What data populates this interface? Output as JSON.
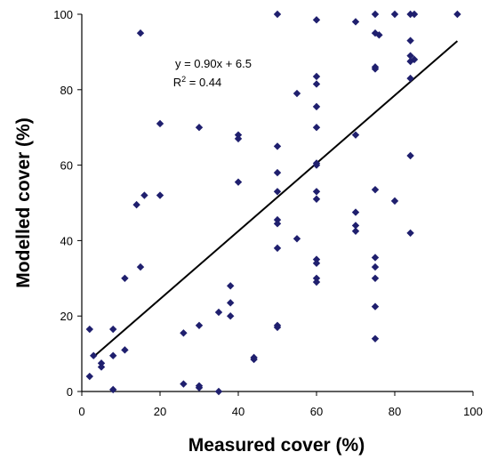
{
  "chart_data": {
    "type": "scatter",
    "title": "",
    "xlabel": "Measured cover (%)",
    "ylabel": "Modelled cover (%)",
    "xlim": [
      0,
      100
    ],
    "ylim": [
      0,
      100
    ],
    "xticks": [
      0,
      20,
      40,
      60,
      80,
      100
    ],
    "yticks": [
      0,
      20,
      40,
      60,
      80,
      100
    ],
    "grid": false,
    "marker": "diamond",
    "marker_color": "#1f1f6e",
    "annotations": {
      "equation": "y = 0.90x + 6.5",
      "r2_prefix": "R",
      "r2_sup": "2",
      "r2_suffix": " = 0.44"
    },
    "trendline": {
      "slope": 0.9,
      "intercept": 6.5,
      "x_range": [
        3,
        96
      ]
    },
    "points": [
      [
        50,
        100
      ],
      [
        60,
        98.5
      ],
      [
        70,
        98
      ],
      [
        75,
        100
      ],
      [
        80,
        100
      ],
      [
        84,
        100
      ],
      [
        85,
        100
      ],
      [
        96,
        100
      ],
      [
        15,
        95
      ],
      [
        75,
        95
      ],
      [
        76,
        94.5
      ],
      [
        84,
        93
      ],
      [
        84,
        89
      ],
      [
        85,
        88
      ],
      [
        84,
        87.5
      ],
      [
        75,
        86
      ],
      [
        75,
        85.5
      ],
      [
        60,
        83.5
      ],
      [
        84,
        83
      ],
      [
        60,
        81.5
      ],
      [
        55,
        79
      ],
      [
        60,
        75.5
      ],
      [
        20,
        71
      ],
      [
        30,
        70
      ],
      [
        60,
        70
      ],
      [
        40,
        68
      ],
      [
        70,
        68
      ],
      [
        40,
        67
      ],
      [
        50,
        65
      ],
      [
        84,
        62.5
      ],
      [
        60,
        60.5
      ],
      [
        60,
        60
      ],
      [
        50,
        58
      ],
      [
        40,
        55.5
      ],
      [
        75,
        53.5
      ],
      [
        50,
        53
      ],
      [
        60,
        53
      ],
      [
        16,
        52
      ],
      [
        20,
        52
      ],
      [
        60,
        51
      ],
      [
        80,
        50.5
      ],
      [
        14,
        49.5
      ],
      [
        70,
        47.5
      ],
      [
        50,
        45.5
      ],
      [
        50,
        44.5
      ],
      [
        70,
        44
      ],
      [
        70,
        42.5
      ],
      [
        84,
        42
      ],
      [
        55,
        40.5
      ],
      [
        50,
        38
      ],
      [
        75,
        35.5
      ],
      [
        60,
        35
      ],
      [
        60,
        34
      ],
      [
        15,
        33
      ],
      [
        75,
        33
      ],
      [
        11,
        30
      ],
      [
        60,
        30
      ],
      [
        75,
        30
      ],
      [
        60,
        29
      ],
      [
        38,
        28
      ],
      [
        38,
        23.5
      ],
      [
        75,
        22.5
      ],
      [
        35,
        21
      ],
      [
        38,
        20
      ],
      [
        50,
        17.5
      ],
      [
        50,
        17
      ],
      [
        30,
        17.5
      ],
      [
        2,
        16.5
      ],
      [
        8,
        16.5
      ],
      [
        26,
        15.5
      ],
      [
        75,
        14
      ],
      [
        11,
        11
      ],
      [
        3,
        9.5
      ],
      [
        8,
        9.5
      ],
      [
        44,
        9
      ],
      [
        44,
        8.5
      ],
      [
        5,
        7.5
      ],
      [
        5,
        6.5
      ],
      [
        2,
        4
      ],
      [
        26,
        2
      ],
      [
        30,
        1.5
      ],
      [
        30,
        1
      ],
      [
        8,
        0.5
      ],
      [
        35,
        0
      ]
    ]
  }
}
